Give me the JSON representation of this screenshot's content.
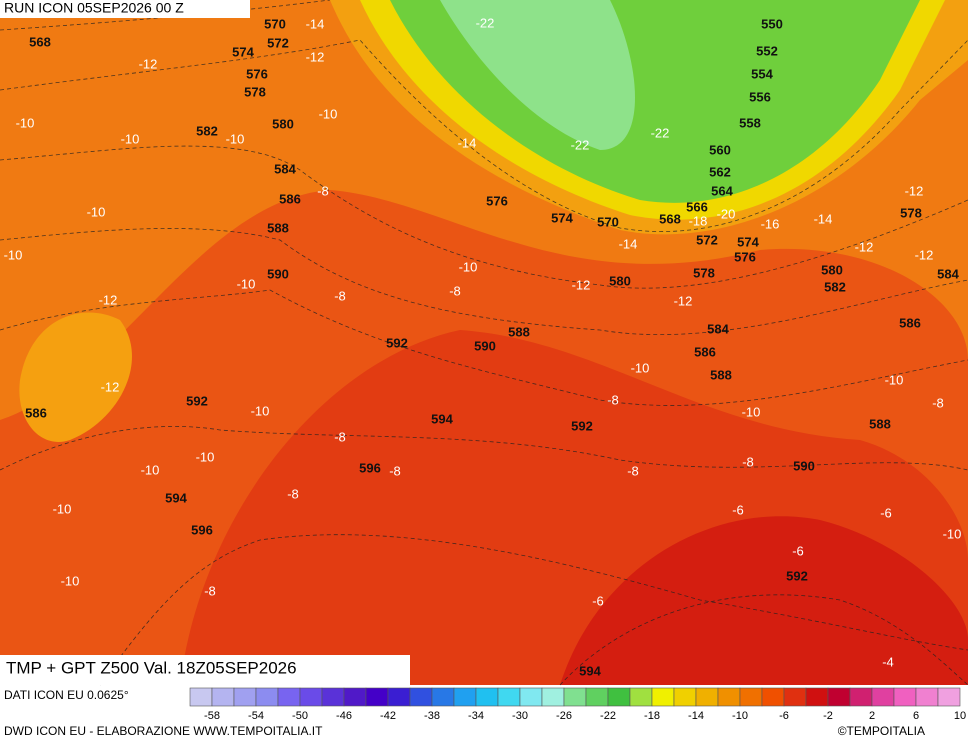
{
  "header": {
    "run": "RUN ICON 05SEP2026 00 Z"
  },
  "map": {
    "geopotential_labels": [
      568,
      570,
      572,
      574,
      576,
      578,
      580,
      582,
      584,
      586,
      588,
      590,
      592,
      594,
      596,
      594,
      596,
      592,
      586,
      576,
      574,
      570,
      568,
      566,
      564,
      562,
      560,
      558,
      556,
      554,
      552,
      550,
      572,
      574,
      576,
      578,
      580,
      580,
      582,
      584,
      586,
      588,
      588,
      590,
      592,
      590,
      588,
      586,
      584,
      578,
      592,
      594
    ],
    "temperature_labels": [
      -14,
      -12,
      -12,
      -10,
      -10,
      -10,
      -10,
      -14,
      -22,
      -22,
      -22,
      -8,
      -10,
      -10,
      -10,
      -8,
      -12,
      -10,
      -8,
      -12,
      -12,
      -12,
      -10,
      -8,
      -10,
      -10,
      -8,
      -8,
      -10,
      -10,
      -8,
      -18,
      -20,
      -16,
      -14,
      -14,
      -12,
      -12,
      -12,
      -10,
      -8,
      -10,
      -8,
      -8,
      -10,
      -8,
      -6,
      -6,
      -10,
      -6,
      -6,
      -4
    ]
  },
  "footer": {
    "title": "TMP + GPT Z500 Val. 18Z05SEP2026",
    "source": "DATI ICON EU 0.0625°",
    "credit": "DWD ICON EU - ELABORAZIONE WWW.TEMPOITALIA.IT",
    "brand": "©TEMPOITALIA"
  },
  "colorbar": {
    "colors": [
      "#c8c8f0",
      "#b4b4f0",
      "#a0a0f0",
      "#8c8cf0",
      "#7864f0",
      "#6a4be8",
      "#5a32d8",
      "#5019c8",
      "#4400c8",
      "#3a1ed2",
      "#3050e0",
      "#2878e6",
      "#20a0f0",
      "#20c0f0",
      "#40d8f0",
      "#80e8f0",
      "#a0f0e0",
      "#80e090",
      "#60d060",
      "#40c040",
      "#a0e040",
      "#f0f000",
      "#f0d000",
      "#f0b000",
      "#f09000",
      "#f07000",
      "#f05000",
      "#e03010",
      "#d01010",
      "#c00030",
      "#d02070",
      "#e040a0",
      "#f060c0",
      "#f080d0",
      "#f0a0e0"
    ],
    "labels": [
      -58,
      -54,
      -50,
      -46,
      -42,
      -38,
      -34,
      -30,
      -26,
      -22,
      -18,
      -14,
      -10,
      -6,
      -2,
      2,
      6,
      10
    ]
  }
}
